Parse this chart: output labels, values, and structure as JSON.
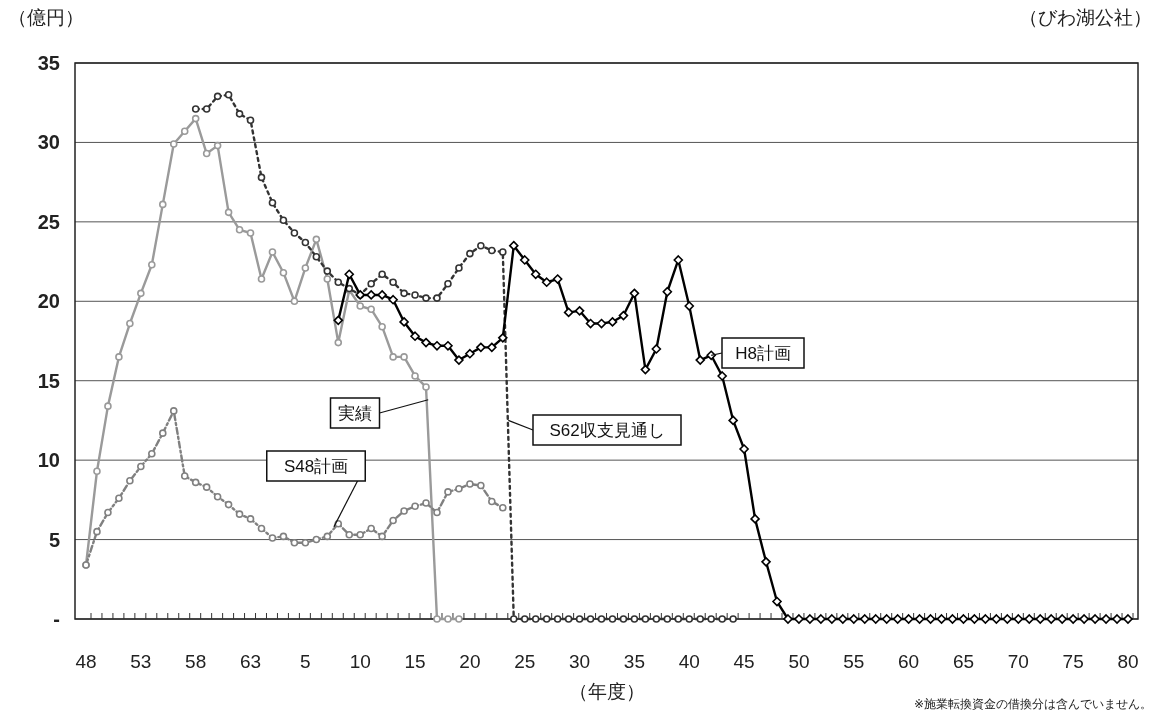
{
  "chart_data": {
    "type": "line",
    "xlabel": "（年度）",
    "ylabel": "（億円）",
    "annotations": [
      "（びわ湖公社）",
      "※施業転換資金の借換分は含んでいません。"
    ],
    "categories": [
      "48",
      null,
      null,
      null,
      null,
      "53",
      null,
      null,
      null,
      null,
      "58",
      null,
      null,
      null,
      null,
      "63",
      null,
      null,
      null,
      null,
      "5",
      null,
      null,
      null,
      null,
      "10",
      null,
      null,
      null,
      null,
      "15",
      null,
      null,
      null,
      null,
      "20",
      null,
      null,
      null,
      null,
      "25",
      null,
      null,
      null,
      null,
      "30",
      null,
      null,
      null,
      null,
      "35",
      null,
      null,
      null,
      null,
      "40",
      null,
      null,
      null,
      null,
      "45",
      null,
      null,
      null,
      null,
      "50",
      null,
      null,
      null,
      null,
      "55",
      null,
      null,
      null,
      null,
      "60",
      null,
      null,
      null,
      null,
      "65",
      null,
      null,
      null,
      null,
      "70",
      null,
      null,
      null,
      null,
      "75",
      null,
      null,
      null,
      null,
      "80"
    ],
    "ylim": [
      0,
      35
    ],
    "yticks": [
      {
        "value": 0,
        "label": "-"
      },
      5,
      10,
      15,
      20,
      25,
      30,
      35
    ],
    "grid": "y",
    "series": [
      {
        "name": "実績",
        "color": "#9a9a9a",
        "marker": "circle",
        "line_style": "solid",
        "values": [
          3.4,
          9.3,
          13.4,
          16.5,
          18.6,
          20.5,
          22.3,
          26.1,
          29.9,
          30.7,
          31.5,
          29.3,
          29.8,
          25.6,
          24.5,
          24.3,
          21.4,
          23.1,
          21.8,
          20.0,
          22.1,
          23.9,
          21.4,
          17.4,
          20.7,
          19.7,
          19.5,
          18.4,
          16.5,
          16.5,
          15.3,
          14.6,
          0,
          0,
          0,
          null,
          null,
          null,
          null,
          null,
          null,
          null,
          null,
          null,
          null,
          null,
          null,
          null,
          null,
          null,
          null,
          null,
          null,
          null,
          null,
          null,
          null,
          null,
          null,
          null,
          null,
          null,
          null,
          null,
          null,
          null,
          null,
          null,
          null,
          null,
          null,
          null,
          null,
          null,
          null,
          null,
          null,
          null,
          null,
          null,
          null,
          null,
          null,
          null,
          null,
          null,
          null,
          null,
          null,
          null,
          null,
          null,
          null,
          null,
          null,
          null
        ]
      },
      {
        "name": "S48計画",
        "color": "#808080",
        "marker": "circle",
        "line_style": "dashed",
        "values": [
          3.4,
          5.5,
          6.7,
          7.6,
          8.7,
          9.6,
          10.4,
          11.7,
          13.1,
          9.0,
          8.6,
          8.3,
          7.7,
          7.2,
          6.6,
          6.3,
          5.7,
          5.1,
          5.2,
          4.8,
          4.8,
          5.0,
          5.2,
          6.0,
          5.3,
          5.3,
          5.7,
          5.2,
          6.2,
          6.8,
          7.1,
          7.3,
          6.7,
          8.0,
          8.2,
          8.5,
          8.4,
          7.4,
          7.0,
          null,
          null,
          null,
          null,
          null,
          null,
          null,
          null,
          null,
          null,
          null,
          null,
          null,
          null,
          null,
          null,
          null,
          null,
          null,
          null,
          null,
          null,
          null,
          null,
          null,
          null,
          null,
          null,
          null,
          null,
          null,
          null,
          null,
          null,
          null,
          null,
          null,
          null,
          null,
          null,
          null,
          null,
          null,
          null,
          null,
          null,
          null,
          null,
          null,
          null,
          null,
          null,
          null,
          null,
          null,
          null,
          null
        ]
      },
      {
        "name": "S62収支見通し",
        "color": "#333333",
        "marker": "circle",
        "line_style": "dotted",
        "values": [
          null,
          null,
          null,
          null,
          null,
          null,
          null,
          null,
          null,
          null,
          32.1,
          32.1,
          32.9,
          33.0,
          31.8,
          31.4,
          27.8,
          26.2,
          25.1,
          24.3,
          23.7,
          22.8,
          21.9,
          21.2,
          20.8,
          20.4,
          21.1,
          21.7,
          21.2,
          20.5,
          20.4,
          20.2,
          20.2,
          21.1,
          22.1,
          23.0,
          23.5,
          23.2,
          23.1,
          0,
          0,
          0,
          0,
          0,
          0,
          0,
          0,
          0,
          0,
          0,
          0,
          0,
          0,
          0,
          0,
          0,
          0,
          0,
          0,
          0,
          null,
          null,
          null,
          null,
          null,
          null,
          null,
          null,
          null,
          null,
          null,
          null,
          null,
          null,
          null,
          null,
          null,
          null,
          null,
          null,
          null,
          null,
          null,
          null,
          null,
          null,
          null,
          null,
          null,
          null,
          null,
          null,
          null,
          null,
          null,
          null
        ]
      },
      {
        "name": "H8計画",
        "color": "#000000",
        "marker": "diamond",
        "line_style": "solid",
        "values": [
          null,
          null,
          null,
          null,
          null,
          null,
          null,
          null,
          null,
          null,
          null,
          null,
          null,
          null,
          null,
          null,
          null,
          null,
          null,
          null,
          null,
          null,
          null,
          18.8,
          21.7,
          20.4,
          20.4,
          20.4,
          20.1,
          18.7,
          17.8,
          17.4,
          17.2,
          17.2,
          16.3,
          16.7,
          17.1,
          17.1,
          17.7,
          23.5,
          22.6,
          21.7,
          21.2,
          21.4,
          19.3,
          19.4,
          18.6,
          18.6,
          18.7,
          19.1,
          20.5,
          15.7,
          17.0,
          20.6,
          22.6,
          19.7,
          16.3,
          16.6,
          15.3,
          12.5,
          10.7,
          6.3,
          3.6,
          1.1,
          0,
          0,
          0,
          0,
          0,
          0,
          0,
          0,
          0,
          0,
          0,
          0,
          0,
          0,
          0,
          0,
          0,
          0,
          0,
          0,
          0,
          0,
          0,
          0,
          0,
          0,
          0,
          0,
          0,
          0,
          0,
          0
        ]
      }
    ]
  }
}
